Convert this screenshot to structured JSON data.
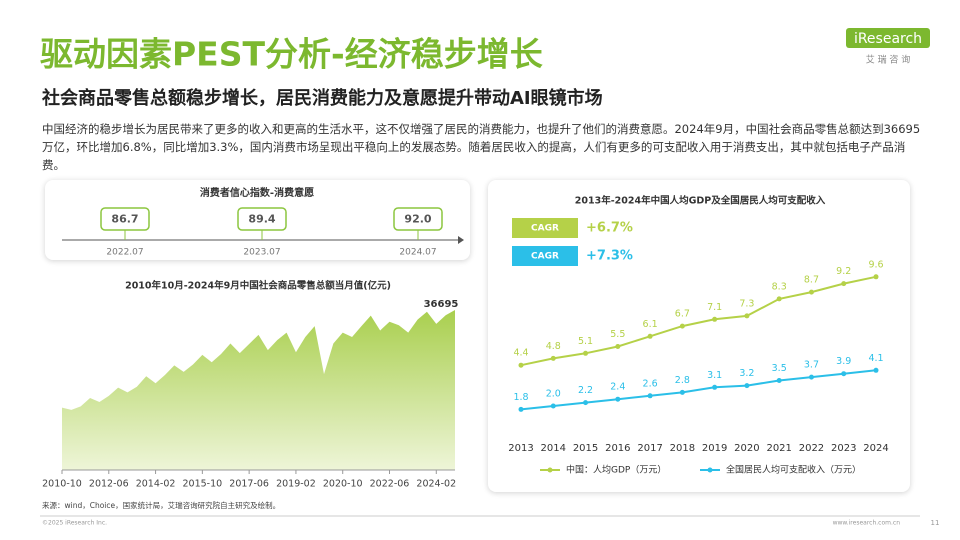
{
  "header": {
    "title": "驱动因素PEST分析-经济稳步增长",
    "subtitle": "社会商品零售总额稳步增长，居民消费能力及意愿提升带动AI眼镜市场",
    "logo": "iResearch",
    "logo_cn": "艾 瑞 咨 询"
  },
  "paragraph": "中国经济的稳步增长为居民带来了更多的收入和更高的生活水平，这不仅增强了居民的消费能力，也提升了他们的消费意愿。2024年9月，中国社会商品零售总额达到36695万亿，环比增加6.8%，同比增加3.3%，国内消费市场呈现出平稳向上的发展态势。随着居民收入的提高，人们有更多的可支配收入用于消费支出，其中就包括电子产品消费。",
  "confidence_panel": {
    "title": "消费者信心指数-消费意愿",
    "items": [
      {
        "value": "86.7",
        "date": "2022.07"
      },
      {
        "value": "89.4",
        "date": "2023.07"
      },
      {
        "value": "92.0",
        "date": "2024.07"
      }
    ]
  },
  "chart_data": [
    {
      "type": "area",
      "title": "2010年10月-2024年9月中国社会商品零售总额当月值(亿元)",
      "color": "#a9cf4e",
      "categories": [
        "2010-10",
        null,
        null,
        null,
        null,
        "2012-06",
        null,
        null,
        null,
        null,
        "2014-02",
        null,
        null,
        null,
        null,
        "2015-10",
        null,
        null,
        null,
        null,
        "2017-06",
        null,
        null,
        null,
        null,
        "2019-02",
        null,
        null,
        null,
        null,
        "2020-10",
        null,
        null,
        null,
        null,
        "2022-06",
        null,
        null,
        null,
        null,
        "2024-02",
        null,
        null
      ],
      "values": [
        14300,
        13800,
        14600,
        16500,
        15600,
        17000,
        18900,
        17800,
        19100,
        21500,
        19900,
        21800,
        24000,
        22500,
        24200,
        26400,
        24700,
        26600,
        29000,
        26800,
        28900,
        31000,
        27500,
        29800,
        31500,
        27000,
        30500,
        33000,
        22000,
        29000,
        31500,
        30500,
        33000,
        35400,
        32000,
        34000,
        33200,
        31500,
        34500,
        36300,
        33500,
        35500,
        36695
      ]
    },
    {
      "type": "line",
      "title": "2013年-2024年中国人均GDP及全国居民人均可支配收入",
      "categories": [
        "2013",
        "2014",
        "2015",
        "2016",
        "2017",
        "2018",
        "2019",
        "2020",
        "2021",
        "2022",
        "2023",
        "2024"
      ],
      "ylim": [
        0,
        10
      ],
      "cagr": [
        {
          "label": "CAGR",
          "value": "+6.7%",
          "color": "#b5d148"
        },
        {
          "label": "CAGR",
          "value": "+7.3%",
          "color": "#2bbfe8"
        }
      ],
      "series": [
        {
          "name": "中国：人均GDP（万元）",
          "color": "#b5d148",
          "values": [
            4.4,
            4.8,
            5.1,
            5.5,
            6.1,
            6.7,
            7.1,
            7.3,
            8.3,
            8.7,
            9.2,
            9.6
          ],
          "value_labels": [
            "4.4",
            "4.8",
            "5.1",
            "5.5",
            "6.1",
            "6.7",
            "7.1",
            "7.3",
            "8.3",
            "8.7",
            "9.2",
            "9.6"
          ]
        },
        {
          "name": "全国居民人均可支配收入（万元）",
          "color": "#2bbfe8",
          "values": [
            1.8,
            2.0,
            2.2,
            2.4,
            2.6,
            2.8,
            3.1,
            3.2,
            3.5,
            3.7,
            3.9,
            4.1
          ],
          "value_labels": [
            "1.8",
            "2.0",
            "2.2",
            "2.4",
            "2.6",
            "2.8",
            "3.1",
            "3.2",
            "3.5",
            "3.7",
            "3.9",
            "4.1"
          ]
        }
      ]
    }
  ],
  "footer": {
    "source": "来源：wind，Choice，国家统计局，艾瑞咨询研究院自主研究及绘制。",
    "copyright": "©2025 iResearch Inc.",
    "website": "www.iresearch.com.cn",
    "page": "11"
  }
}
